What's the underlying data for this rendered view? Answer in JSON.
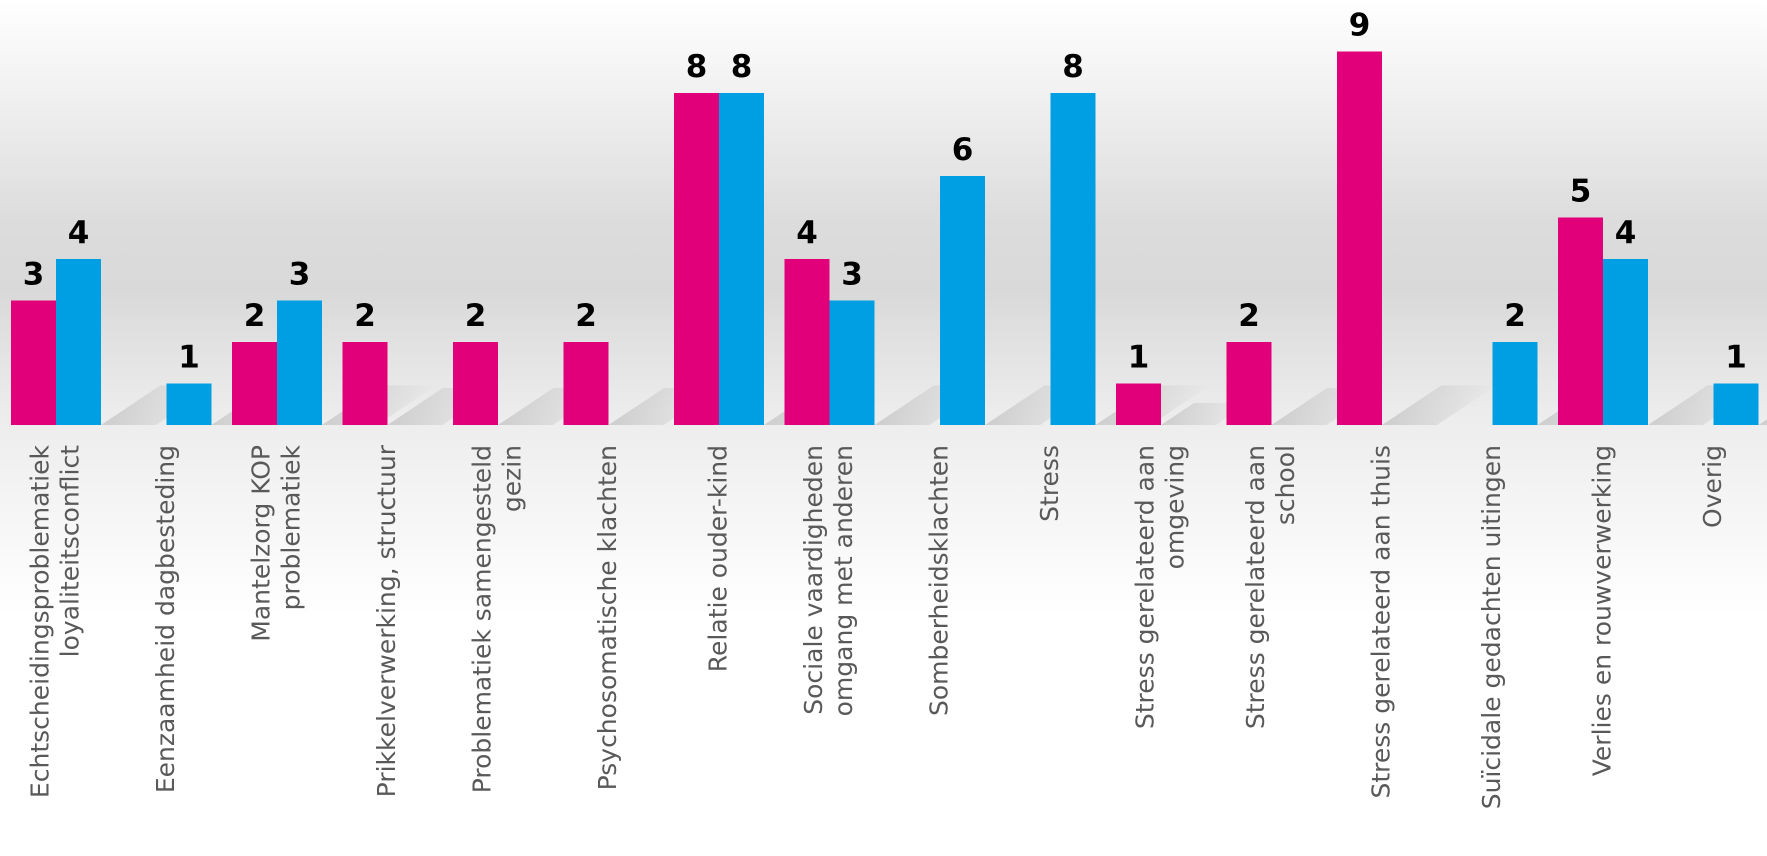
{
  "chart_data": {
    "type": "bar",
    "categories": [
      [
        "Echtscheidingsproblematiek",
        "loyaliteitsconflict"
      ],
      [
        "Eenzaamheid dagbesteding"
      ],
      [
        "Mantelzorg KOP",
        "problematiek"
      ],
      [
        "Prikkelverwerking, structuur"
      ],
      [
        "Problematiek samengesteld",
        "gezin"
      ],
      [
        "Psychosomatische klachten"
      ],
      [
        "Relatie ouder-kind"
      ],
      [
        "Sociale vaardigheden",
        "omgang met anderen"
      ],
      [
        "Somberheidsklachten"
      ],
      [
        "Stress"
      ],
      [
        "Stress gerelateerd aan",
        "omgeving"
      ],
      [
        "Stress gerelateerd aan",
        "school"
      ],
      [
        "Stress gerelateerd aan thuis"
      ],
      [
        "Suïcidale gedachten uitingen"
      ],
      [
        "Verlies en rouwverwerking"
      ],
      [
        "Overig"
      ]
    ],
    "series": [
      {
        "values": [
          3,
          0,
          2,
          2,
          2,
          2,
          8,
          4,
          0,
          0,
          1,
          2,
          9,
          0,
          5,
          0
        ]
      },
      {
        "values": [
          4,
          1,
          3,
          0,
          0,
          0,
          8,
          3,
          6,
          8,
          0,
          0,
          0,
          2,
          4,
          1
        ]
      }
    ],
    "ylim": [
      0,
      10
    ],
    "grid": false,
    "legend": "none",
    "data_labels": true
  },
  "colors": {
    "series1": "#E2007A",
    "series2": "#009FE3",
    "value_label": "#000000",
    "category_label": "#595959"
  }
}
